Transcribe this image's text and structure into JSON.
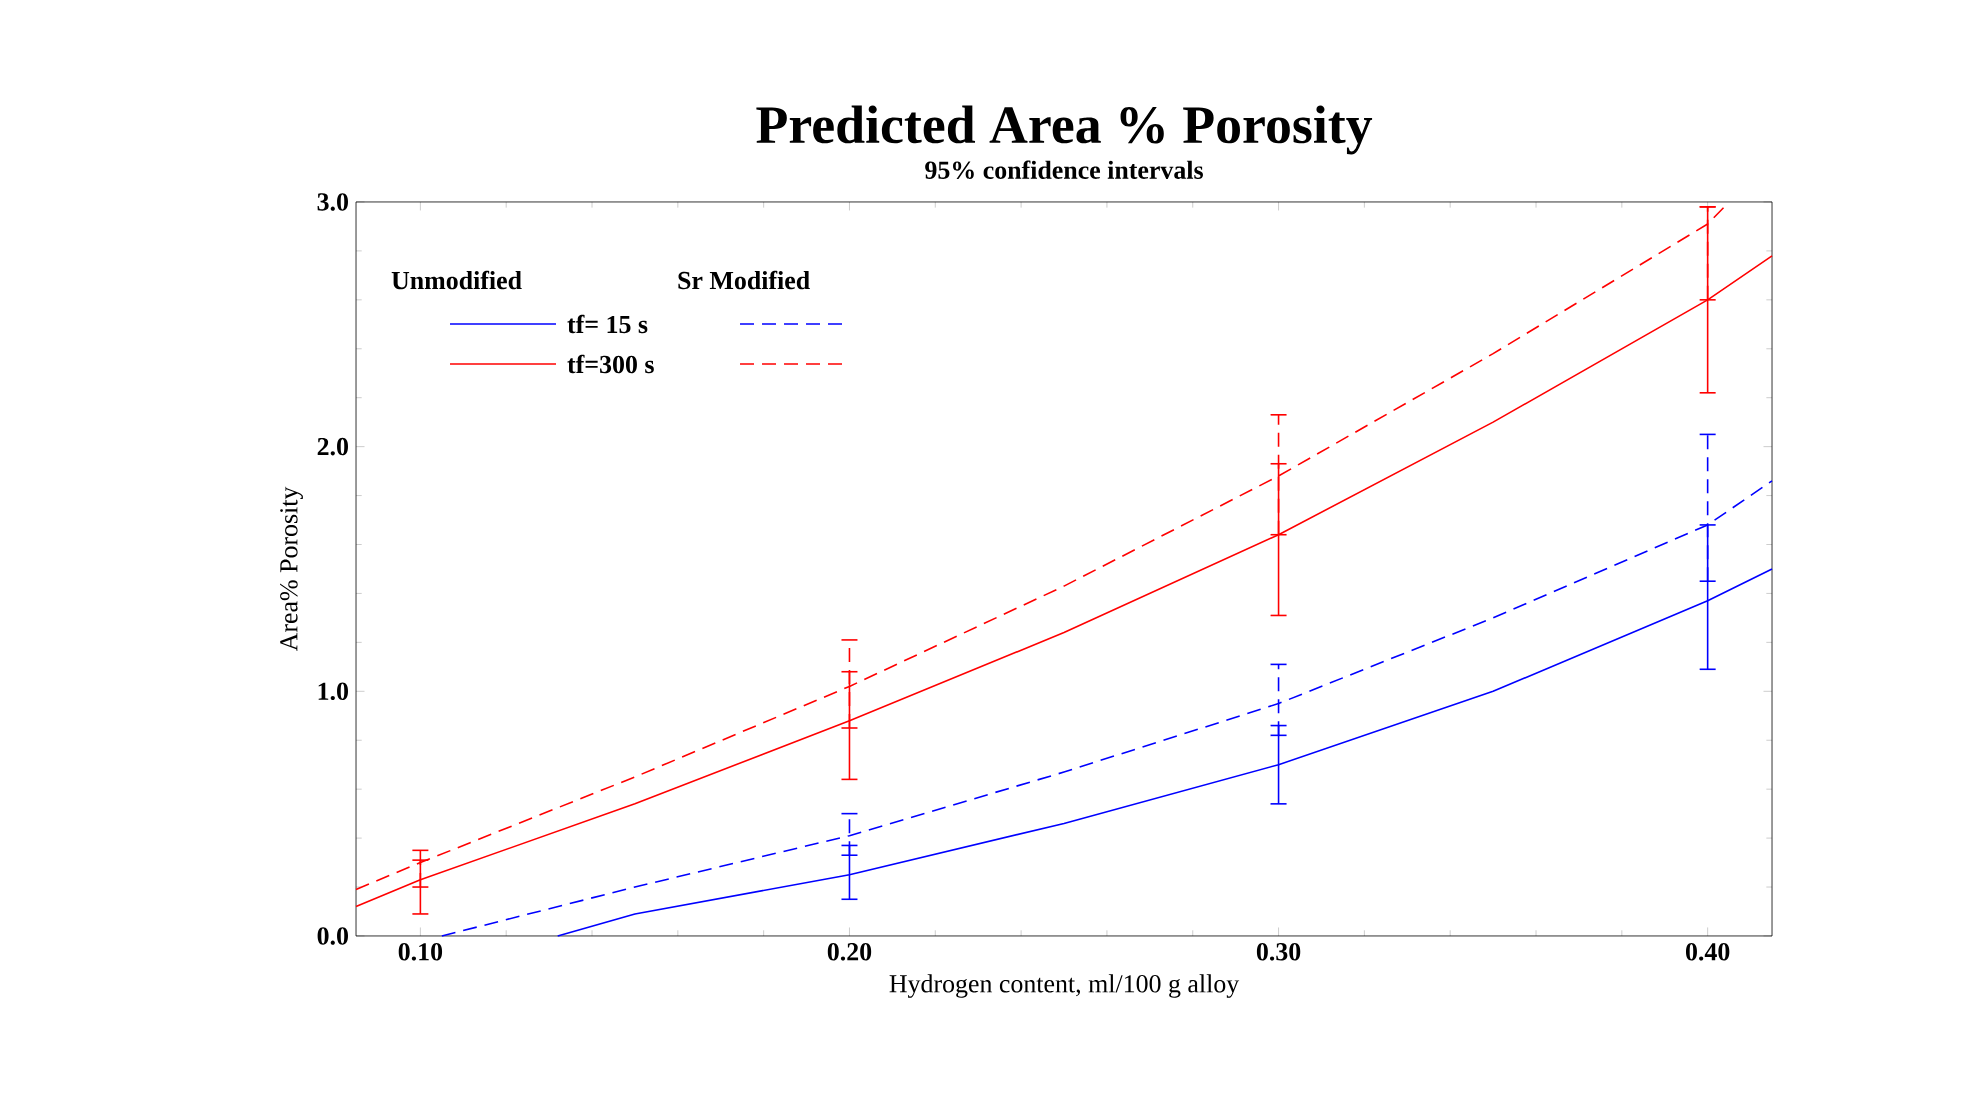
{
  "chart_data": {
    "type": "line",
    "title": "Predicted Area % Porosity",
    "subtitle": "95% confidence intervals",
    "xlabel": "Hydrogen content, ml/100 g alloy",
    "ylabel": "Area% Porosity",
    "annotations": [
      "Unmodified",
      "Sr Modified"
    ],
    "xlim": [
      0.085,
      0.415
    ],
    "ylim": [
      0,
      3.0
    ],
    "xticks": [
      {
        "value": 0.1,
        "label": "0.10"
      },
      {
        "value": 0.2,
        "label": "0.20"
      },
      {
        "value": 0.3,
        "label": "0.30"
      },
      {
        "value": 0.4,
        "label": "0.40"
      }
    ],
    "yticks": [
      {
        "value": 0,
        "label": "0.0"
      },
      {
        "value": 1,
        "label": "1.0"
      },
      {
        "value": 2,
        "label": "2.0"
      },
      {
        "value": 3,
        "label": "3.0"
      }
    ],
    "grid": false,
    "legend": "top left",
    "marker": "none",
    "series": [
      {
        "name": "tf= 15 s",
        "color": "#0000ff",
        "line_style": "solid",
        "x": [
          0.132,
          0.15,
          0.2,
          0.25,
          0.3,
          0.35,
          0.4,
          0.415
        ],
        "values": [
          0,
          0.09,
          0.25,
          0.46,
          0.7,
          1.0,
          1.37,
          1.5
        ],
        "errors": [
          null,
          null,
          [
            0.15,
            0.37
          ],
          null,
          [
            0.54,
            0.86
          ],
          null,
          [
            1.09,
            1.68
          ],
          null
        ]
      },
      {
        "name": "tf=300 s",
        "color": "#ff0000",
        "line_style": "solid",
        "x": [
          0.085,
          0.1,
          0.15,
          0.2,
          0.25,
          0.3,
          0.35,
          0.4,
          0.415
        ],
        "values": [
          0.12,
          0.23,
          0.54,
          0.88,
          1.24,
          1.64,
          2.1,
          2.6,
          2.78
        ],
        "errors": [
          null,
          [
            0.09,
            0.31
          ],
          null,
          [
            0.64,
            1.08
          ],
          null,
          [
            1.31,
            1.93
          ],
          null,
          [
            2.22,
            2.98
          ],
          null
        ]
      },
      {
        "color": "#0000ff",
        "line_style": "dashed",
        "x": [
          0.105,
          0.15,
          0.2,
          0.25,
          0.3,
          0.35,
          0.4,
          0.415
        ],
        "values": [
          0,
          0.2,
          0.41,
          0.67,
          0.95,
          1.3,
          1.68,
          1.86
        ],
        "errors": [
          null,
          null,
          [
            0.33,
            0.5
          ],
          null,
          [
            0.82,
            1.11
          ],
          null,
          [
            1.45,
            2.05
          ],
          null
        ]
      },
      {
        "color": "#ff0000",
        "line_style": "dashed",
        "x": [
          0.085,
          0.1,
          0.15,
          0.2,
          0.25,
          0.3,
          0.35,
          0.4,
          0.405
        ],
        "values": [
          0.19,
          0.3,
          0.65,
          1.02,
          1.43,
          1.88,
          2.38,
          2.91,
          3.0
        ],
        "errors": [
          null,
          [
            0.2,
            0.35
          ],
          null,
          [
            0.85,
            1.21
          ],
          null,
          [
            1.64,
            2.13
          ],
          null,
          [
            2.6,
            2.98
          ],
          null
        ]
      }
    ]
  }
}
